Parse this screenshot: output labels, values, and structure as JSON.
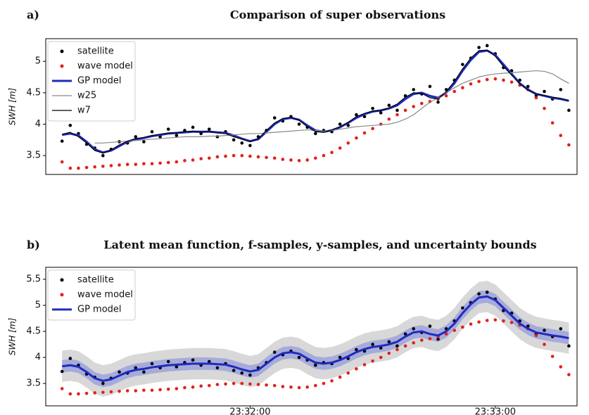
{
  "chart_data": [
    {
      "type": "line",
      "panel_label": "a)",
      "title": "Comparison of super observations",
      "y_label": "SWH [m]",
      "legend": "upper left",
      "grid": false,
      "xlim": [
        84670,
        84800
      ],
      "ylim": [
        3.2,
        5.36
      ],
      "yticks": [
        3.5,
        4.0,
        4.5,
        5.0
      ],
      "x": [
        84674,
        84676,
        84678,
        84680,
        84682,
        84684,
        84686,
        84688,
        84690,
        84692,
        84694,
        84696,
        84698,
        84700,
        84702,
        84704,
        84706,
        84708,
        84710,
        84712,
        84714,
        84716,
        84718,
        84720,
        84722,
        84724,
        84726,
        84728,
        84730,
        84732,
        84734,
        84736,
        84738,
        84740,
        84742,
        84744,
        84746,
        84748,
        84750,
        84752,
        84754,
        84756,
        84758,
        84760,
        84762,
        84764,
        84766,
        84768,
        84770,
        84772,
        84774,
        84776,
        84778,
        84780,
        84782,
        84784,
        84786,
        84788,
        84790,
        84792,
        84794,
        84796,
        84798
      ],
      "series": [
        {
          "name": "satellite",
          "style": "points",
          "color": "#000000",
          "values": [
            3.73,
            3.98,
            3.85,
            3.68,
            3.62,
            3.5,
            3.6,
            3.72,
            3.7,
            3.8,
            3.72,
            3.88,
            3.8,
            3.92,
            3.82,
            3.9,
            3.95,
            3.85,
            3.92,
            3.8,
            3.88,
            3.75,
            3.7,
            3.66,
            3.8,
            3.9,
            4.1,
            4.05,
            4.12,
            4.0,
            3.95,
            3.85,
            3.9,
            3.88,
            4.0,
            3.98,
            4.15,
            4.12,
            4.25,
            4.18,
            4.3,
            4.22,
            4.45,
            4.55,
            4.48,
            4.6,
            4.35,
            4.55,
            4.7,
            4.95,
            5.05,
            5.22,
            5.25,
            5.12,
            4.9,
            4.85,
            4.7,
            4.6,
            4.45,
            4.52,
            4.4,
            4.55,
            4.22
          ]
        },
        {
          "name": "wave model",
          "style": "points",
          "color": "#e0211d",
          "values": [
            3.4,
            3.3,
            3.3,
            3.31,
            3.32,
            3.33,
            3.34,
            3.35,
            3.36,
            3.36,
            3.37,
            3.37,
            3.38,
            3.39,
            3.4,
            3.42,
            3.43,
            3.45,
            3.46,
            3.48,
            3.49,
            3.5,
            3.5,
            3.49,
            3.48,
            3.47,
            3.46,
            3.44,
            3.43,
            3.42,
            3.43,
            3.46,
            3.5,
            3.55,
            3.62,
            3.7,
            3.78,
            3.86,
            3.93,
            4.0,
            4.08,
            4.15,
            4.22,
            4.28,
            4.33,
            4.36,
            4.4,
            4.45,
            4.52,
            4.58,
            4.64,
            4.68,
            4.71,
            4.72,
            4.7,
            4.67,
            4.62,
            4.55,
            4.42,
            4.25,
            4.02,
            3.82,
            3.67
          ]
        },
        {
          "name": "GP model",
          "style": "line",
          "linewidth": 3,
          "color": "#1f2bbd",
          "values": [
            3.83,
            3.85,
            3.82,
            3.72,
            3.6,
            3.55,
            3.58,
            3.65,
            3.72,
            3.76,
            3.78,
            3.81,
            3.83,
            3.85,
            3.86,
            3.87,
            3.88,
            3.88,
            3.88,
            3.87,
            3.86,
            3.82,
            3.77,
            3.73,
            3.76,
            3.88,
            4.0,
            4.08,
            4.1,
            4.07,
            3.98,
            3.9,
            3.88,
            3.9,
            3.95,
            4.02,
            4.1,
            4.16,
            4.2,
            4.22,
            4.25,
            4.3,
            4.4,
            4.48,
            4.5,
            4.45,
            4.42,
            4.5,
            4.65,
            4.85,
            5.02,
            5.15,
            5.17,
            5.1,
            4.95,
            4.8,
            4.65,
            4.55,
            4.48,
            4.45,
            4.42,
            4.4,
            4.37
          ]
        },
        {
          "name": "w25",
          "style": "line",
          "linewidth": 1.2,
          "color": "#888888",
          "values": [
            null,
            null,
            null,
            null,
            3.7,
            3.7,
            3.71,
            3.72,
            3.73,
            3.74,
            3.75,
            3.76,
            3.77,
            3.78,
            3.79,
            3.8,
            3.8,
            3.8,
            3.81,
            3.81,
            3.82,
            3.83,
            3.84,
            3.85,
            3.85,
            3.86,
            3.87,
            3.88,
            3.89,
            3.9,
            3.91,
            3.9,
            3.89,
            3.9,
            3.92,
            3.94,
            3.96,
            3.97,
            3.98,
            3.99,
            4.0,
            4.03,
            4.08,
            4.15,
            4.25,
            4.35,
            4.42,
            4.5,
            4.58,
            4.65,
            4.7,
            4.75,
            4.78,
            4.8,
            4.81,
            4.82,
            4.83,
            4.84,
            4.85,
            4.84,
            4.8,
            4.72,
            4.65
          ]
        },
        {
          "name": "w7",
          "style": "line",
          "linewidth": 1.2,
          "color": "#000000",
          "values": [
            3.84,
            3.87,
            3.8,
            3.7,
            3.58,
            3.54,
            3.59,
            3.67,
            3.73,
            3.77,
            3.79,
            3.82,
            3.84,
            3.86,
            3.86,
            3.88,
            3.89,
            3.87,
            3.89,
            3.86,
            3.85,
            3.8,
            3.76,
            3.72,
            3.77,
            3.9,
            4.02,
            4.09,
            4.11,
            4.06,
            3.96,
            3.88,
            3.87,
            3.91,
            3.96,
            4.03,
            4.12,
            4.17,
            4.21,
            4.21,
            4.26,
            4.32,
            4.43,
            4.5,
            4.49,
            4.42,
            4.4,
            4.52,
            4.68,
            4.88,
            5.05,
            5.17,
            5.18,
            5.08,
            4.92,
            4.78,
            4.64,
            4.54,
            4.48,
            4.46,
            4.43,
            4.41,
            4.38
          ]
        }
      ]
    },
    {
      "type": "line",
      "panel_label": "b)",
      "title": "Latent mean function, f-samples, y-samples, and uncertainty bounds",
      "y_label": "SWH [m]",
      "legend": "upper left",
      "grid": false,
      "xlim": [
        84670,
        84800
      ],
      "xticks": [
        {
          "value": 84720,
          "label": "23:32:00"
        },
        {
          "value": 84780,
          "label": "23:33:00"
        }
      ],
      "ylim": [
        3.07,
        5.73
      ],
      "yticks": [
        3.5,
        4.0,
        4.5,
        5.0,
        5.5
      ],
      "x": [
        84674,
        84676,
        84678,
        84680,
        84682,
        84684,
        84686,
        84688,
        84690,
        84692,
        84694,
        84696,
        84698,
        84700,
        84702,
        84704,
        84706,
        84708,
        84710,
        84712,
        84714,
        84716,
        84718,
        84720,
        84722,
        84724,
        84726,
        84728,
        84730,
        84732,
        84734,
        84736,
        84738,
        84740,
        84742,
        84744,
        84746,
        84748,
        84750,
        84752,
        84754,
        84756,
        84758,
        84760,
        84762,
        84764,
        84766,
        84768,
        84770,
        84772,
        84774,
        84776,
        84778,
        84780,
        84782,
        84784,
        84786,
        84788,
        84790,
        84792,
        84794,
        84796,
        84798
      ],
      "series": [
        {
          "name": "satellite",
          "style": "points",
          "color": "#000000",
          "values": [
            3.73,
            3.98,
            3.85,
            3.68,
            3.62,
            3.5,
            3.6,
            3.72,
            3.7,
            3.8,
            3.72,
            3.88,
            3.8,
            3.92,
            3.82,
            3.9,
            3.95,
            3.85,
            3.92,
            3.8,
            3.88,
            3.75,
            3.7,
            3.66,
            3.8,
            3.9,
            4.1,
            4.05,
            4.12,
            4.0,
            3.95,
            3.85,
            3.9,
            3.88,
            4.0,
            3.98,
            4.15,
            4.12,
            4.25,
            4.18,
            4.3,
            4.22,
            4.45,
            4.55,
            4.48,
            4.6,
            4.35,
            4.55,
            4.7,
            4.95,
            5.05,
            5.22,
            5.25,
            5.12,
            4.9,
            4.85,
            4.7,
            4.6,
            4.45,
            4.52,
            4.4,
            4.55,
            4.22
          ]
        },
        {
          "name": "wave model",
          "style": "points",
          "color": "#e0211d",
          "values": [
            3.4,
            3.3,
            3.3,
            3.31,
            3.32,
            3.33,
            3.34,
            3.35,
            3.36,
            3.36,
            3.37,
            3.37,
            3.38,
            3.39,
            3.4,
            3.42,
            3.43,
            3.45,
            3.46,
            3.48,
            3.49,
            3.5,
            3.5,
            3.49,
            3.48,
            3.47,
            3.46,
            3.44,
            3.43,
            3.42,
            3.43,
            3.46,
            3.5,
            3.55,
            3.62,
            3.7,
            3.78,
            3.86,
            3.93,
            4.0,
            4.08,
            4.15,
            4.22,
            4.28,
            4.33,
            4.36,
            4.4,
            4.45,
            4.52,
            4.58,
            4.64,
            4.68,
            4.71,
            4.72,
            4.7,
            4.67,
            4.62,
            4.55,
            4.42,
            4.25,
            4.02,
            3.82,
            3.67
          ]
        },
        {
          "name": "GP model",
          "style": "line",
          "linewidth": 3,
          "color": "#1f2bbd",
          "y_band": 0.3,
          "f_band": 0.12,
          "values": [
            3.83,
            3.85,
            3.82,
            3.72,
            3.6,
            3.55,
            3.58,
            3.65,
            3.72,
            3.76,
            3.78,
            3.81,
            3.83,
            3.85,
            3.86,
            3.87,
            3.88,
            3.88,
            3.88,
            3.87,
            3.86,
            3.82,
            3.77,
            3.73,
            3.76,
            3.88,
            4.0,
            4.08,
            4.1,
            4.07,
            3.98,
            3.9,
            3.88,
            3.9,
            3.95,
            4.02,
            4.1,
            4.16,
            4.2,
            4.22,
            4.25,
            4.3,
            4.4,
            4.48,
            4.5,
            4.45,
            4.42,
            4.5,
            4.65,
            4.85,
            5.02,
            5.15,
            5.17,
            5.1,
            4.95,
            4.8,
            4.65,
            4.55,
            4.48,
            4.45,
            4.42,
            4.4,
            4.37
          ]
        }
      ]
    }
  ]
}
